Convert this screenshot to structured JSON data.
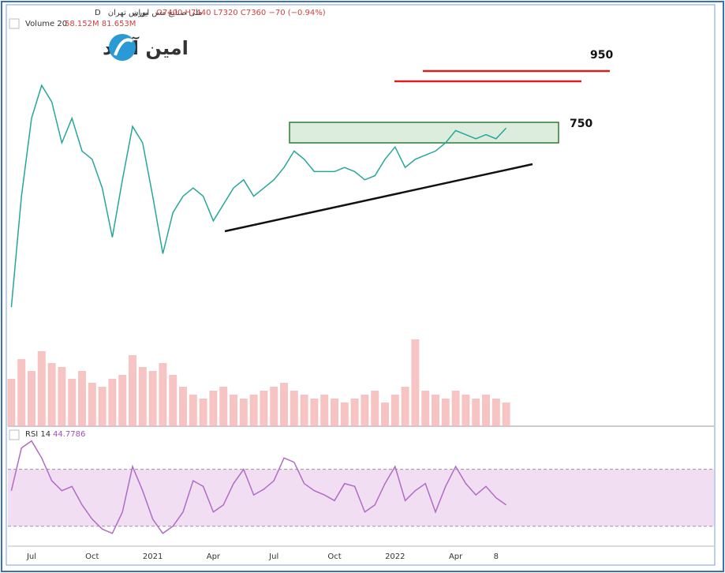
{
  "header": {
    "symbol": "ملی صنایع مس ایران",
    "interval": "D",
    "exchange": "بورس تهران",
    "ohlc": "O7400 H7440 L7320 C7360 −70 (−0.94%)",
    "volume_legend": "Volume 20",
    "volume_values": "58.152M 81.653M",
    "rsi_legend": "RSI 14",
    "rsi_value": "44.7786",
    "logo": "امین آوید"
  },
  "annotations": [
    "950",
    "750"
  ],
  "chart_data": [
    {
      "type": "line",
      "color": "#26a69a",
      "categories": [
        null,
        null,
        "Jul",
        null,
        null,
        null,
        null,
        null,
        "Oct",
        null,
        null,
        null,
        null,
        null,
        "2021",
        null,
        null,
        null,
        null,
        null,
        "Apr",
        null,
        null,
        null,
        null,
        null,
        "Jul",
        null,
        null,
        null,
        null,
        null,
        "Oct",
        null,
        null,
        null,
        null,
        null,
        "2022",
        null,
        null,
        null,
        null,
        null,
        "Apr",
        null,
        null,
        null,
        "8",
        null
      ],
      "values": [
        3000,
        5700,
        7600,
        8400,
        8000,
        7000,
        7600,
        6800,
        6600,
        5900,
        4700,
        6100,
        7400,
        7000,
        5700,
        4300,
        5300,
        5700,
        5900,
        5700,
        5100,
        5500,
        5900,
        6100,
        5700,
        5900,
        6100,
        6400,
        6800,
        6600,
        6300,
        6300,
        6300,
        6400,
        6300,
        6100,
        6200,
        6600,
        6900,
        6400,
        6600,
        6700,
        6800,
        7000,
        7300,
        7200,
        7100,
        7200,
        7100,
        7360
      ],
      "ylim": [
        2500,
        9500
      ]
    },
    {
      "type": "bar",
      "color": "#f4b6b4",
      "values": [
        60,
        85,
        70,
        95,
        80,
        75,
        60,
        70,
        55,
        50,
        60,
        65,
        90,
        75,
        70,
        80,
        65,
        50,
        40,
        35,
        45,
        50,
        40,
        35,
        40,
        45,
        50,
        55,
        45,
        40,
        35,
        40,
        35,
        30,
        35,
        40,
        45,
        30,
        40,
        50,
        110,
        45,
        40,
        35,
        45,
        40,
        35,
        40,
        35,
        30
      ],
      "ylim": [
        0,
        125
      ]
    },
    {
      "type": "line",
      "color": "#b06cc4",
      "values": [
        55,
        85,
        90,
        78,
        62,
        55,
        58,
        45,
        35,
        28,
        25,
        40,
        72,
        55,
        35,
        25,
        30,
        40,
        62,
        58,
        40,
        45,
        60,
        70,
        52,
        56,
        62,
        78,
        75,
        60,
        55,
        52,
        48,
        60,
        58,
        40,
        45,
        60,
        72,
        48,
        55,
        60,
        40,
        58,
        72,
        60,
        52,
        58,
        50,
        45
      ],
      "band": [
        30,
        70
      ],
      "ylim": [
        16,
        92
      ]
    }
  ]
}
